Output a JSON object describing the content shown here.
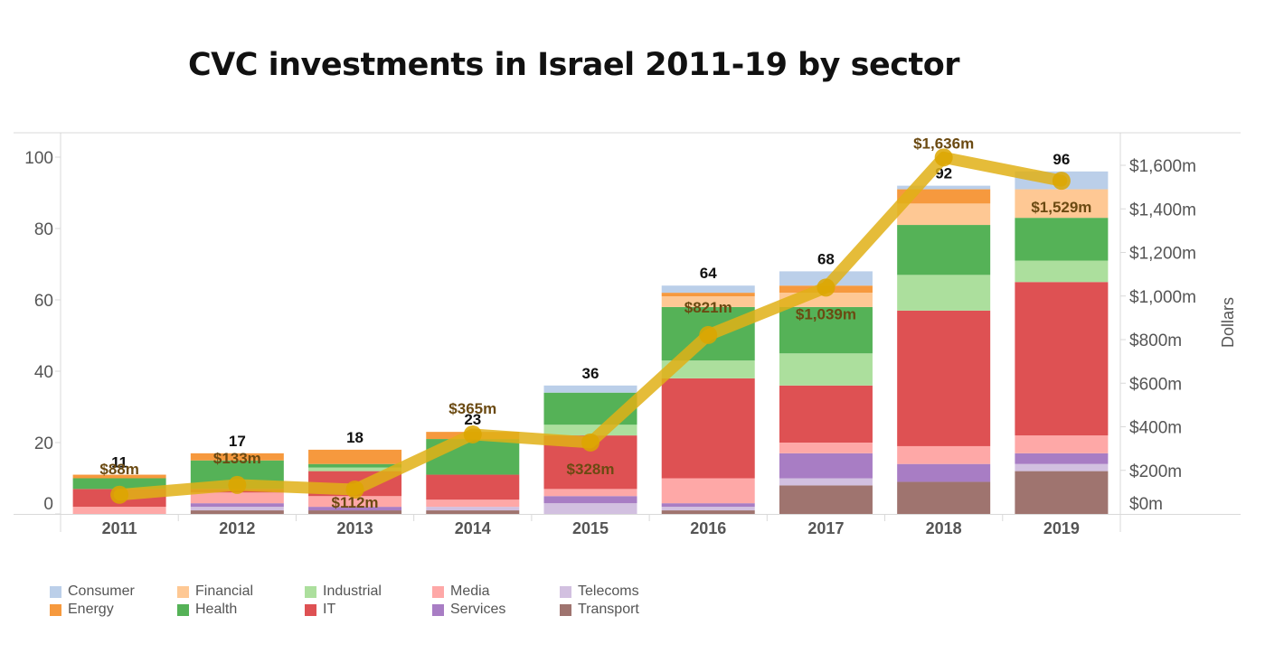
{
  "chart_data": {
    "type": "bar",
    "subtype": "stacked bar with line overlay (dual axis)",
    "title": "CVC investments in Israel 2011-19 by sector",
    "categories": [
      "2011",
      "2012",
      "2013",
      "2014",
      "2015",
      "2016",
      "2017",
      "2018",
      "2019"
    ],
    "left_axis": {
      "label": "",
      "ylim": [
        0,
        100
      ],
      "ticks": [
        "0",
        "20",
        "40",
        "60",
        "80",
        "100"
      ]
    },
    "right_axis": {
      "label": "Dollars",
      "ylim": [
        0,
        1600
      ],
      "ticks": [
        "$0m",
        "$200m",
        "$400m",
        "$600m",
        "$800m",
        "$1,000m",
        "$1,200m",
        "$1,400m",
        "$1,600m"
      ]
    },
    "stack_order": [
      "Transport",
      "Telecoms",
      "Services",
      "Media",
      "IT",
      "Industrial",
      "Health",
      "Financial",
      "Energy",
      "Consumer"
    ],
    "series": [
      {
        "name": "Consumer",
        "color": "#bbcfe9",
        "values": [
          0,
          0,
          0,
          0,
          2,
          2,
          4,
          1,
          5
        ]
      },
      {
        "name": "Energy",
        "color": "#f6993e",
        "values": [
          1,
          2,
          4,
          2,
          0,
          1,
          2,
          4,
          0
        ]
      },
      {
        "name": "Financial",
        "color": "#fec894",
        "values": [
          0,
          0,
          0,
          0,
          0,
          3,
          4,
          6,
          8
        ]
      },
      {
        "name": "Health",
        "color": "#55b257",
        "values": [
          3,
          8,
          1,
          10,
          9,
          15,
          13,
          14,
          12
        ]
      },
      {
        "name": "Industrial",
        "color": "#acdf9d",
        "values": [
          0,
          0,
          1,
          0,
          3,
          5,
          9,
          10,
          6
        ]
      },
      {
        "name": "IT",
        "color": "#de5153",
        "values": [
          5,
          1,
          7,
          7,
          15,
          28,
          16,
          38,
          43
        ]
      },
      {
        "name": "Media",
        "color": "#fea8a7",
        "values": [
          2,
          3,
          3,
          2,
          2,
          7,
          3,
          5,
          5
        ]
      },
      {
        "name": "Services",
        "color": "#a87dc4",
        "values": [
          0,
          1,
          1,
          0,
          2,
          1,
          7,
          5,
          3
        ]
      },
      {
        "name": "Telecoms",
        "color": "#d2c0e0",
        "values": [
          0,
          1,
          0,
          1,
          3,
          1,
          2,
          0,
          2
        ]
      },
      {
        "name": "Transport",
        "color": "#9f746f",
        "values": [
          0,
          1,
          1,
          1,
          0,
          1,
          8,
          9,
          12
        ]
      }
    ],
    "totals": [
      11,
      17,
      18,
      23,
      36,
      64,
      68,
      92,
      96
    ],
    "total_labels": [
      "11",
      "17",
      "18",
      "23",
      "36",
      "64",
      "68",
      "92",
      "96"
    ],
    "line": {
      "name": "Dollars",
      "color": "#e0b016",
      "values": [
        88,
        133,
        112,
        365,
        328,
        821,
        1039,
        1636,
        1529
      ],
      "labels": [
        "$88m",
        "$133m",
        "$112m",
        "$365m",
        "$328m",
        "$821m",
        "$1,039m",
        "$1,636m",
        "$1,529m"
      ]
    },
    "legend": {
      "placement": "bottom-left",
      "items": [
        {
          "name": "Consumer",
          "color": "#bbcfe9"
        },
        {
          "name": "Financial",
          "color": "#fec894"
        },
        {
          "name": "Industrial",
          "color": "#acdf9d"
        },
        {
          "name": "Media",
          "color": "#fea8a7"
        },
        {
          "name": "Telecoms",
          "color": "#d2c0e0"
        },
        {
          "name": "Energy",
          "color": "#f6993e"
        },
        {
          "name": "Health",
          "color": "#55b257"
        },
        {
          "name": "IT",
          "color": "#de5153"
        },
        {
          "name": "Services",
          "color": "#a87dc4"
        },
        {
          "name": "Transport",
          "color": "#9f746f"
        }
      ]
    },
    "grid": false
  }
}
